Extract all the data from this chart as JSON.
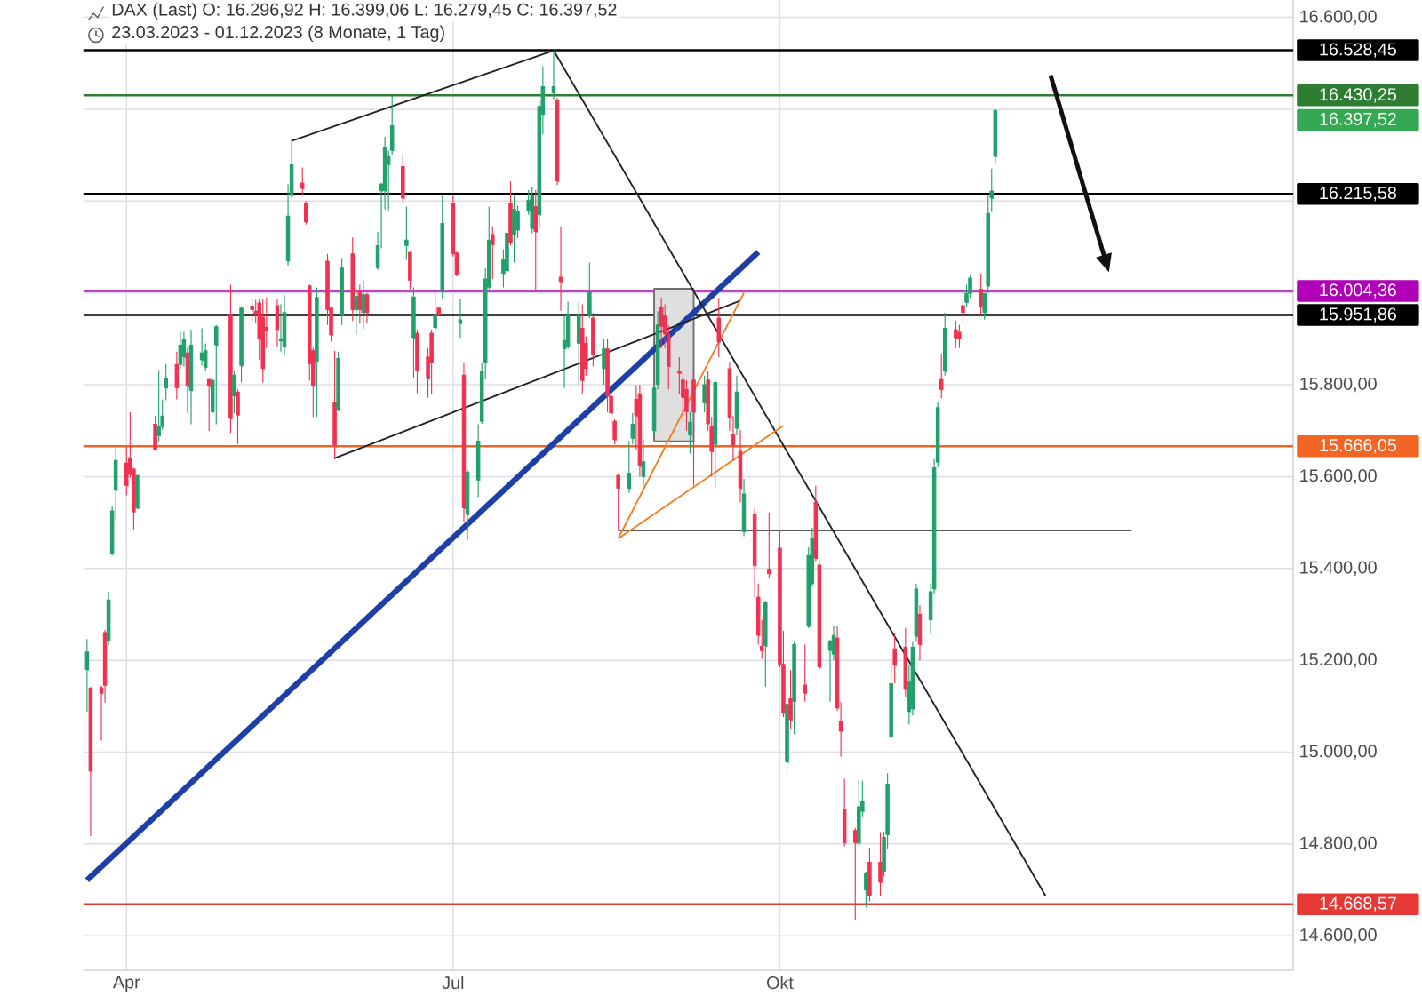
{
  "chart_data": {
    "type": "candlestick",
    "title": "DAX (Last)  O: 16.296,92 H: 16.399,06 L: 16.279,45 C: 16.397,52",
    "subtitle": "23.03.2023 - 01.12.2023 (8 Monate, 1 Tag)",
    "x": [
      "2023-03-23",
      "2023-03-24",
      "2023-03-27",
      "2023-03-28",
      "2023-03-29",
      "2023-03-30",
      "2023-03-31",
      "2023-04-03",
      "2023-04-04",
      "2023-04-05",
      "2023-04-06",
      "2023-04-11",
      "2023-04-12",
      "2023-04-13",
      "2023-04-14",
      "2023-04-17",
      "2023-04-18",
      "2023-04-19",
      "2023-04-20",
      "2023-04-21",
      "2023-04-24",
      "2023-04-25",
      "2023-04-26",
      "2023-04-27",
      "2023-04-28",
      "2023-05-02",
      "2023-05-03",
      "2023-05-04",
      "2023-05-05",
      "2023-05-08",
      "2023-05-09",
      "2023-05-10",
      "2023-05-11",
      "2023-05-12",
      "2023-05-15",
      "2023-05-16",
      "2023-05-17",
      "2023-05-18",
      "2023-05-19",
      "2023-05-22",
      "2023-05-23",
      "2023-05-24",
      "2023-05-25",
      "2023-05-26",
      "2023-05-29",
      "2023-05-30",
      "2023-05-31",
      "2023-06-01",
      "2023-06-02",
      "2023-06-05",
      "2023-06-06",
      "2023-06-07",
      "2023-06-08",
      "2023-06-09",
      "2023-06-12",
      "2023-06-13",
      "2023-06-14",
      "2023-06-15",
      "2023-06-16",
      "2023-06-19",
      "2023-06-20",
      "2023-06-21",
      "2023-06-22",
      "2023-06-23",
      "2023-06-26",
      "2023-06-27",
      "2023-06-28",
      "2023-06-29",
      "2023-06-30",
      "2023-07-03",
      "2023-07-04",
      "2023-07-05",
      "2023-07-06",
      "2023-07-07",
      "2023-07-10",
      "2023-07-11",
      "2023-07-12",
      "2023-07-13",
      "2023-07-14",
      "2023-07-17",
      "2023-07-18",
      "2023-07-19",
      "2023-07-20",
      "2023-07-21",
      "2023-07-24",
      "2023-07-25",
      "2023-07-26",
      "2023-07-27",
      "2023-07-28",
      "2023-07-31",
      "2023-08-01",
      "2023-08-02",
      "2023-08-03",
      "2023-08-04",
      "2023-08-07",
      "2023-08-08",
      "2023-08-09",
      "2023-08-10",
      "2023-08-11",
      "2023-08-14",
      "2023-08-15",
      "2023-08-16",
      "2023-08-17",
      "2023-08-18",
      "2023-08-21",
      "2023-08-22",
      "2023-08-23",
      "2023-08-24",
      "2023-08-25",
      "2023-08-28",
      "2023-08-29",
      "2023-08-30",
      "2023-08-31",
      "2023-09-01",
      "2023-09-04",
      "2023-09-05",
      "2023-09-06",
      "2023-09-07",
      "2023-09-08",
      "2023-09-11",
      "2023-09-12",
      "2023-09-13",
      "2023-09-14",
      "2023-09-15",
      "2023-09-18",
      "2023-09-19",
      "2023-09-20",
      "2023-09-21",
      "2023-09-22",
      "2023-09-25",
      "2023-09-26",
      "2023-09-27",
      "2023-09-28",
      "2023-09-29",
      "2023-10-02",
      "2023-10-03",
      "2023-10-04",
      "2023-10-05",
      "2023-10-06",
      "2023-10-09",
      "2023-10-10",
      "2023-10-11",
      "2023-10-12",
      "2023-10-13",
      "2023-10-16",
      "2023-10-17",
      "2023-10-18",
      "2023-10-19",
      "2023-10-20",
      "2023-10-23",
      "2023-10-24",
      "2023-10-25",
      "2023-10-26",
      "2023-10-27",
      "2023-10-30",
      "2023-10-31",
      "2023-11-01",
      "2023-11-02",
      "2023-11-03",
      "2023-11-06",
      "2023-11-07",
      "2023-11-08",
      "2023-11-09",
      "2023-11-10",
      "2023-11-13",
      "2023-11-14",
      "2023-11-15",
      "2023-11-16",
      "2023-11-17",
      "2023-11-20",
      "2023-11-21",
      "2023-11-22",
      "2023-11-23",
      "2023-11-24",
      "2023-11-27",
      "2023-11-28",
      "2023-11-29",
      "2023-11-30",
      "2023-12-01"
    ],
    "ohlc": [
      [
        15179,
        15246,
        15088,
        15218
      ],
      [
        15139,
        15142,
        14817,
        14958
      ],
      [
        15140,
        15145,
        15025,
        15128
      ],
      [
        15260,
        15266,
        15108,
        15145
      ],
      [
        15242,
        15349,
        15234,
        15331
      ],
      [
        15432,
        15537,
        15428,
        15525
      ],
      [
        15570,
        15665,
        15505,
        15635
      ],
      [
        15629,
        15665,
        15559,
        15580
      ],
      [
        15641,
        15740,
        15598,
        15604
      ],
      [
        15616,
        15619,
        15485,
        15523
      ],
      [
        15531,
        15604,
        15529,
        15602
      ],
      [
        15714,
        15732,
        15657,
        15659
      ],
      [
        15689,
        15832,
        15677,
        15708
      ],
      [
        15708,
        15768,
        15702,
        15732
      ],
      [
        15793,
        15845,
        15766,
        15813
      ],
      [
        15844,
        15872,
        15768,
        15793
      ],
      [
        15844,
        15918,
        15835,
        15886
      ],
      [
        15860,
        15915,
        15840,
        15898
      ],
      [
        15869,
        15881,
        15738,
        15796
      ],
      [
        15787,
        15920,
        15714,
        15886
      ],
      [
        15854,
        15923,
        15841,
        15869
      ],
      [
        15838,
        15890,
        15829,
        15874
      ],
      [
        15811,
        15813,
        15699,
        15796
      ],
      [
        15741,
        15812,
        15738,
        15809
      ],
      [
        15886,
        15930,
        15714,
        15926
      ],
      [
        15953,
        16018,
        15695,
        15726
      ],
      [
        15775,
        15830,
        15738,
        15821
      ],
      [
        15784,
        15790,
        15671,
        15734
      ],
      [
        15841,
        15969,
        15805,
        15967
      ],
      [
        15971,
        15987,
        15939,
        15963
      ],
      [
        15960,
        15985,
        15935,
        15955
      ],
      [
        15978,
        15987,
        15854,
        15899
      ],
      [
        15947,
        15987,
        15805,
        15835
      ],
      [
        15925,
        15990,
        15880,
        15918
      ],
      [
        15972,
        15987,
        15884,
        15920
      ],
      [
        15895,
        15975,
        15872,
        15900
      ],
      [
        15884,
        15996,
        15866,
        15957
      ],
      [
        16069,
        16237,
        16060,
        16167
      ],
      [
        16212,
        16334,
        16206,
        16279
      ],
      [
        16239,
        16273,
        16212,
        16227
      ],
      [
        16194,
        16200,
        16149,
        16154
      ],
      [
        16015,
        16018,
        15809,
        15845
      ],
      [
        15874,
        15880,
        15730,
        15797
      ],
      [
        15851,
        16012,
        15730,
        15990
      ],
      [
        16069,
        16085,
        15930,
        15963
      ],
      [
        15967,
        15970,
        15894,
        15908
      ],
      [
        15762,
        15874,
        15638,
        15668
      ],
      [
        15744,
        15872,
        15742,
        15857
      ],
      [
        15951,
        16076,
        15930,
        16054
      ],
      [
        16085,
        16121,
        15939,
        15963
      ],
      [
        15963,
        16010,
        15910,
        15992
      ],
      [
        16002,
        16018,
        15933,
        15963
      ],
      [
        15957,
        16027,
        15921,
        15996
      ],
      [
        15996,
        16000,
        15933,
        15957
      ],
      [
        16054,
        16133,
        16050,
        16103
      ],
      [
        16222,
        16240,
        16097,
        16237
      ],
      [
        16222,
        16340,
        16182,
        16316
      ],
      [
        16279,
        16310,
        16180,
        16297
      ],
      [
        16310,
        16429,
        16300,
        16364
      ],
      [
        16275,
        16303,
        16194,
        16206
      ],
      [
        16103,
        16188,
        16072,
        16115
      ],
      [
        16088,
        16090,
        16008,
        16027
      ],
      [
        15902,
        16012,
        15814,
        15991
      ],
      [
        15912,
        15920,
        15781,
        15830
      ],
      [
        15860,
        15880,
        15772,
        15813
      ],
      [
        15912,
        15920,
        15780,
        15848
      ],
      [
        15924,
        16006,
        15920,
        15953
      ],
      [
        15967,
        15970,
        15950,
        15953
      ],
      [
        16006,
        16212,
        15987,
        16151
      ],
      [
        16194,
        16212,
        16079,
        16085
      ],
      [
        16087,
        16090,
        16036,
        16040
      ],
      [
        15933,
        15987,
        15902,
        15941
      ],
      [
        15821,
        15848,
        15501,
        15531
      ],
      [
        15517,
        15615,
        15461,
        15610
      ],
      [
        15592,
        15714,
        15556,
        15677
      ],
      [
        15720,
        15848,
        15715,
        15829
      ],
      [
        15848,
        16054,
        15811,
        16030
      ],
      [
        16012,
        16188,
        16005,
        16115
      ],
      [
        16127,
        16145,
        16030,
        16105
      ],
      [
        16042,
        16095,
        16012,
        16072
      ],
      [
        16048,
        16139,
        16044,
        16130
      ],
      [
        16194,
        16243,
        16103,
        16109
      ],
      [
        16127,
        16212,
        16066,
        16182
      ],
      [
        16137,
        16190,
        16120,
        16178
      ],
      [
        16178,
        16224,
        16170,
        16202
      ],
      [
        16140,
        16230,
        16130,
        16212
      ],
      [
        16188,
        16224,
        16006,
        16133
      ],
      [
        16170,
        16420,
        16140,
        16406
      ],
      [
        16389,
        16494,
        16346,
        16449
      ],
      [
        16435,
        16528,
        16420,
        16449
      ],
      [
        16419,
        16425,
        16235,
        16243
      ],
      [
        16034,
        16145,
        15961,
        16024
      ],
      [
        15878,
        15951,
        15793,
        15896
      ],
      [
        15884,
        15981,
        15878,
        15953
      ],
      [
        15890,
        15980,
        15800,
        15951
      ],
      [
        15923,
        15975,
        15781,
        15809
      ],
      [
        15890,
        15905,
        15820,
        15835
      ],
      [
        15951,
        16066,
        15945,
        16000
      ],
      [
        15945,
        15957,
        15840,
        15866
      ],
      [
        15835,
        15900,
        15800,
        15878
      ],
      [
        15878,
        15900,
        15740,
        15775
      ],
      [
        15775,
        15792,
        15702,
        15738
      ],
      [
        15720,
        15725,
        15670,
        15680
      ],
      [
        15602,
        15605,
        15483,
        15574
      ],
      [
        15574,
        15677,
        15565,
        15607
      ],
      [
        15683,
        15738,
        15670,
        15714
      ],
      [
        15768,
        15799,
        15659,
        15732
      ],
      [
        15780,
        15800,
        15600,
        15622
      ],
      [
        15600,
        15680,
        15580,
        15632
      ],
      [
        15700,
        15800,
        15690,
        15792
      ],
      [
        15800,
        15960,
        15790,
        15930
      ],
      [
        15969,
        15990,
        15880,
        15927
      ],
      [
        15950,
        15975,
        15880,
        15910
      ],
      [
        15908,
        15930,
        15790,
        15840
      ],
      [
        15830,
        15860,
        15780,
        15825
      ],
      [
        15810,
        15830,
        15720,
        15772
      ],
      [
        15790,
        15810,
        15700,
        15741
      ],
      [
        15690,
        15740,
        15650,
        15718
      ],
      [
        15810,
        15830,
        15580,
        15740
      ],
      [
        15760,
        15820,
        15740,
        15800
      ],
      [
        15810,
        15830,
        15700,
        15715
      ],
      [
        15710,
        15730,
        15600,
        15654
      ],
      [
        15670,
        15810,
        15574,
        15805
      ],
      [
        15945,
        15989,
        15860,
        15893
      ],
      [
        15835,
        15850,
        15700,
        15728
      ],
      [
        15692,
        15732,
        15635,
        15668
      ],
      [
        15705,
        15820,
        15690,
        15784
      ],
      [
        15655,
        15702,
        15544,
        15574
      ],
      [
        15480,
        15595,
        15470,
        15562
      ],
      [
        15517,
        15531,
        15337,
        15406
      ],
      [
        15337,
        15367,
        15234,
        15254
      ],
      [
        15230,
        15288,
        15203,
        15220
      ],
      [
        15231,
        15330,
        15142,
        15327
      ],
      [
        15398,
        15522,
        15380,
        15388
      ],
      [
        15444,
        15483,
        15185,
        15191
      ],
      [
        15191,
        15264,
        15076,
        15085
      ],
      [
        14978,
        15179,
        14954,
        15104
      ],
      [
        15116,
        15179,
        15050,
        15070
      ],
      [
        15110,
        15240,
        15039,
        15234
      ],
      [
        15146,
        15234,
        15110,
        15128
      ],
      [
        15274,
        15446,
        15270,
        15428
      ],
      [
        15367,
        15489,
        15360,
        15465
      ],
      [
        15544,
        15580,
        15416,
        15422
      ],
      [
        15407,
        15416,
        15180,
        15185
      ],
      [
        15221,
        15245,
        15110,
        15240
      ],
      [
        15213,
        15274,
        15200,
        15254
      ],
      [
        15248,
        15274,
        15090,
        15096
      ],
      [
        15067,
        15110,
        14990,
        15045
      ],
      [
        14875,
        14942,
        14795,
        14802
      ],
      [
        14829,
        14835,
        14634,
        14802
      ],
      [
        14802,
        14940,
        14795,
        14881
      ],
      [
        14871,
        14938,
        14860,
        14893
      ],
      [
        14699,
        14740,
        14662,
        14735
      ],
      [
        14760,
        14792,
        14675,
        14687
      ],
      [
        14760,
        14826,
        14687,
        14716
      ],
      [
        14741,
        14826,
        14729,
        14814
      ],
      [
        14820,
        14954,
        14790,
        14930
      ],
      [
        15033,
        15203,
        15030,
        15149
      ],
      [
        15225,
        15260,
        15150,
        15189
      ],
      [
        15228,
        15270,
        15120,
        15136
      ],
      [
        15088,
        15191,
        15060,
        15152
      ],
      [
        15094,
        15240,
        15080,
        15228
      ],
      [
        15252,
        15367,
        15240,
        15355
      ],
      [
        15300,
        15320,
        15200,
        15234
      ],
      [
        15288,
        15367,
        15258,
        15349
      ],
      [
        15355,
        15638,
        15345,
        15619
      ],
      [
        15631,
        15762,
        15620,
        15750
      ],
      [
        15811,
        15868,
        15770,
        15789
      ],
      [
        15829,
        15957,
        15820,
        15923
      ],
      [
        15920,
        15940,
        15880,
        15902
      ],
      [
        15914,
        15930,
        15880,
        15900
      ],
      [
        15972,
        16003,
        15939,
        15957
      ],
      [
        15979,
        16018,
        15970,
        15999
      ],
      [
        15999,
        16040,
        15990,
        16032
      ],
      [
        16008,
        16042,
        15950,
        15969
      ],
      [
        15957,
        15999,
        15942,
        15999
      ],
      [
        16015,
        16212,
        16000,
        16173
      ],
      [
        16206,
        16271,
        16176,
        16222
      ],
      [
        16296.92,
        16399.06,
        16279.45,
        16397.52
      ]
    ],
    "colors": [
      "#22a06b",
      "#f23050",
      "#f23050",
      "#f23050",
      "#22a06b",
      "#22a06b",
      "#22a06b",
      "#f23050",
      "#f23050",
      "#f23050",
      "#22a06b",
      "#f23050",
      "#22a06b",
      "#22a06b",
      "#22a06b",
      "#f23050",
      "#22a06b",
      "#22a06b",
      "#f23050",
      "#22a06b",
      "#22a06b",
      "#22a06b",
      "#f23050",
      "#22a06b",
      "#22a06b",
      "#f23050",
      "#22a06b",
      "#f23050",
      "#22a06b",
      "#f23050",
      "#f23050",
      "#f23050",
      "#f23050",
      "#f23050",
      "#f23050",
      "#22a06b",
      "#22a06b",
      "#22a06b",
      "#22a06b",
      "#f23050",
      "#f23050",
      "#f23050",
      "#f23050",
      "#22a06b",
      "#f23050",
      "#f23050",
      "#f23050",
      "#22a06b",
      "#22a06b",
      "#f23050",
      "#22a06b",
      "#f23050",
      "#22a06b",
      "#f23050",
      "#22a06b",
      "#22a06b",
      "#22a06b",
      "#22a06b",
      "#22a06b",
      "#f23050",
      "#22a06b",
      "#f23050",
      "#22a06b",
      "#f23050",
      "#f23050",
      "#f23050",
      "#22a06b",
      "#f23050",
      "#22a06b",
      "#f23050",
      "#f23050",
      "#22a06b",
      "#f23050",
      "#22a06b",
      "#22a06b",
      "#22a06b",
      "#22a06b",
      "#22a06b",
      "#f23050",
      "#22a06b",
      "#22a06b",
      "#f23050",
      "#22a06b",
      "#22a06b",
      "#22a06b",
      "#22a06b",
      "#f23050",
      "#22a06b",
      "#22a06b",
      "#22a06b",
      "#f23050",
      "#f23050",
      "#22a06b",
      "#22a06b",
      "#22a06b",
      "#f23050",
      "#f23050",
      "#22a06b",
      "#f23050",
      "#22a06b",
      "#f23050",
      "#f23050",
      "#f23050",
      "#f23050",
      "#22a06b",
      "#22a06b",
      "#f23050",
      "#f23050",
      "#22a06b",
      "#22a06b",
      "#22a06b",
      "#f23050",
      "#f23050",
      "#f23050",
      "#f23050",
      "#f23050",
      "#f23050",
      "#22a06b",
      "#f23050",
      "#22a06b",
      "#f23050",
      "#f23050",
      "#22a06b",
      "#f23050",
      "#f23050",
      "#f23050",
      "#22a06b",
      "#f23050",
      "#22a06b",
      "#f23050",
      "#f23050",
      "#f23050",
      "#22a06b",
      "#f23050",
      "#f23050",
      "#f23050",
      "#22a06b",
      "#f23050",
      "#22a06b",
      "#f23050",
      "#22a06b",
      "#22a06b",
      "#f23050",
      "#f23050",
      "#22a06b",
      "#22a06b",
      "#f23050",
      "#f23050",
      "#f23050",
      "#f23050",
      "#22a06b",
      "#22a06b",
      "#22a06b",
      "#f23050",
      "#f23050",
      "#22a06b",
      "#22a06b",
      "#22a06b",
      "#f23050",
      "#f23050",
      "#22a06b",
      "#22a06b",
      "#22a06b",
      "#f23050",
      "#22a06b",
      "#22a06b",
      "#22a06b",
      "#f23050",
      "#22a06b",
      "#f23050",
      "#f23050",
      "#f23050",
      "#22a06b",
      "#22a06b",
      "#f23050",
      "#22a06b",
      "#22a06b",
      "#22a06b",
      "#22a06b"
    ],
    "series": [
      {
        "type": "area",
        "x": [
          "2023-08-28",
          "2023-08-28",
          "2023-09-08",
          "2023-09-08",
          "2023-08-28"
        ],
        "values": [
          15677,
          16009,
          16009,
          15677,
          15677
        ],
        "color": "#6e6e6e"
      },
      {
        "type": "line",
        "x": [
          "2023-03-23",
          "2023-09-26"
        ],
        "values": [
          14721,
          16089
        ],
        "color": "#1f3fa8"
      },
      {
        "type": "line",
        "x": [
          "2023-05-19",
          "2023-07-31"
        ],
        "values": [
          16331,
          16528
        ],
        "color": "#222222"
      },
      {
        "type": "line",
        "x": [
          "2023-05-31",
          "2023-09-21"
        ],
        "values": [
          15640,
          15983
        ],
        "color": "#222222"
      },
      {
        "type": "line",
        "x": [
          "2023-07-31",
          "2023-12-15"
        ],
        "values": [
          16528,
          14687
        ],
        "color": "#222222"
      },
      {
        "type": "line",
        "x": [
          "2023-08-18",
          "2024-01-08"
        ],
        "values": [
          15483,
          15483
        ],
        "color": "#222222"
      },
      {
        "type": "line",
        "x": [
          "2023-08-18",
          "2023-09-22"
        ],
        "values": [
          15465,
          16000
        ],
        "color": "#f57c1f"
      },
      {
        "type": "line",
        "x": [
          "2023-08-18",
          "2023-10-03"
        ],
        "values": [
          15465,
          15711
        ],
        "color": "#f57c1f"
      }
    ],
    "ref_lines": [
      {
        "axis": "y",
        "value": 16528.45,
        "label": "16.528,45",
        "color": "#000000"
      },
      {
        "axis": "y",
        "value": 16430.25,
        "label": "16.430,25",
        "color": "#2e7d32"
      },
      {
        "axis": "y",
        "value": 16215.58,
        "label": "16.215,58",
        "color": "#000000"
      },
      {
        "axis": "y",
        "value": 16004.36,
        "label": "16.004,36",
        "color": "#b000b8"
      },
      {
        "axis": "y",
        "value": 15951.86,
        "label": "15.951,86",
        "color": "#000000"
      },
      {
        "axis": "y",
        "value": 15666.05,
        "label": "15.666,05",
        "color": "#f26522"
      },
      {
        "axis": "y",
        "value": 14668.57,
        "label": "14.668,57",
        "color": "#e53935"
      }
    ],
    "annotations": [
      "16.397,52"
    ],
    "xlim": [
      "2023-03-22",
      "2024-02-22"
    ],
    "ylim": [
      14525,
      16638
    ],
    "xticks": [
      {
        "value": "2023-04-03",
        "label": "Apr"
      },
      {
        "value": "2023-07-03",
        "label": "Jul"
      },
      {
        "value": "2023-10-02",
        "label": "Okt"
      }
    ],
    "yticks": [
      {
        "value": 14600,
        "label": "14.600,00"
      },
      {
        "value": 14800,
        "label": "14.800,00"
      },
      {
        "value": 15000,
        "label": "15.000,00"
      },
      {
        "value": 15200,
        "label": "15.200,00"
      },
      {
        "value": 15400,
        "label": "15.400,00"
      },
      {
        "value": 15600,
        "label": "15.600,00"
      },
      {
        "value": 15800,
        "label": "15.800,00"
      },
      {
        "value": 16000,
        "label": null
      },
      {
        "value": 16200,
        "label": null
      },
      {
        "value": 16400,
        "label": null
      },
      {
        "value": 16600,
        "label": "16.600,00"
      }
    ],
    "grid": true
  }
}
